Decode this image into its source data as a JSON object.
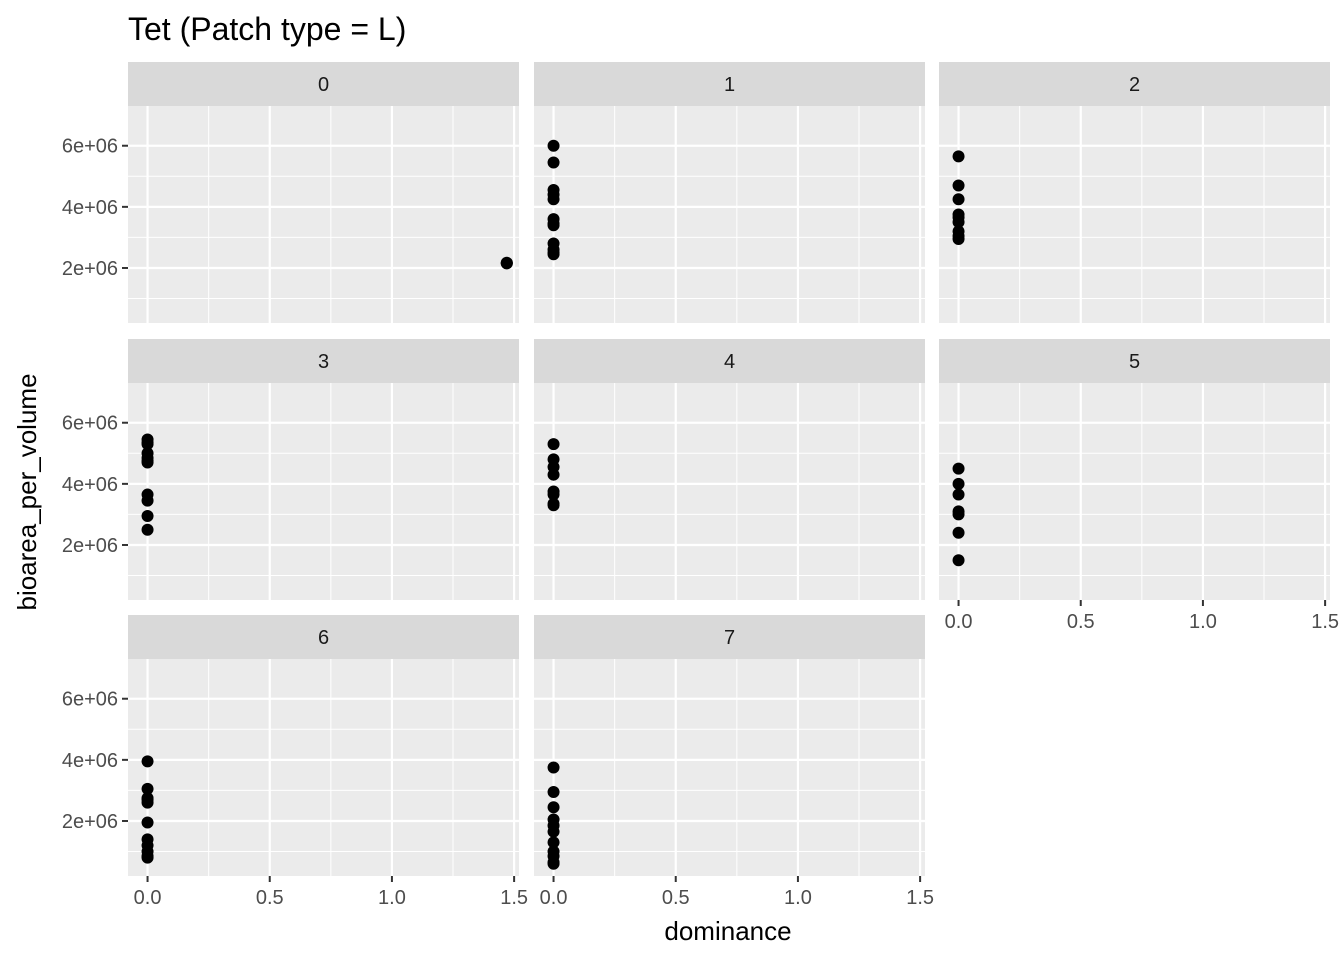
{
  "chart_data": {
    "type": "scatter",
    "title": "Tet (Patch type = L)",
    "xlabel": "dominance",
    "ylabel": "bioarea_per_volume",
    "xlim": [
      -0.08,
      1.52
    ],
    "ylim": [
      200000,
      7300000
    ],
    "x_ticks": [
      0.0,
      0.5,
      1.0,
      1.5
    ],
    "x_tick_labels": [
      "0.0",
      "0.5",
      "1.0",
      "1.5"
    ],
    "y_ticks": [
      2000000,
      4000000,
      6000000
    ],
    "y_tick_labels": [
      "2e+06",
      "4e+06",
      "6e+06"
    ],
    "grid": true,
    "facet_layout": {
      "ncol": 3,
      "nrow": 3
    },
    "panels": [
      {
        "label": "0",
        "x": [
          1.47,
          1.47,
          1.47
        ],
        "y": [
          2150000,
          2170000,
          2160000
        ]
      },
      {
        "label": "1",
        "x": [
          0,
          0,
          0,
          0,
          0,
          0,
          0,
          0,
          0,
          0,
          0,
          0
        ],
        "y": [
          6000000,
          5450000,
          4550000,
          4400000,
          4250000,
          3600000,
          3450000,
          3400000,
          2800000,
          2600000,
          2500000,
          2450000
        ]
      },
      {
        "label": "2",
        "x": [
          0,
          0,
          0,
          0,
          0,
          0,
          0,
          0,
          0
        ],
        "y": [
          5650000,
          4700000,
          4250000,
          3750000,
          3650000,
          3500000,
          3200000,
          3050000,
          2950000
        ]
      },
      {
        "label": "3",
        "x": [
          0,
          0,
          0,
          0,
          0,
          0,
          0,
          0,
          0,
          0,
          0
        ],
        "y": [
          5450000,
          5350000,
          5000000,
          4850000,
          4700000,
          3650000,
          3450000,
          2950000,
          2500000,
          4750000,
          5300000
        ]
      },
      {
        "label": "4",
        "x": [
          0,
          0,
          0,
          0,
          0,
          0,
          0,
          0
        ],
        "y": [
          5300000,
          4800000,
          4550000,
          4300000,
          3750000,
          3650000,
          3350000,
          3300000
        ]
      },
      {
        "label": "5",
        "x": [
          0,
          0,
          0,
          0,
          0,
          0,
          0
        ],
        "y": [
          4500000,
          4000000,
          3650000,
          3100000,
          3000000,
          2400000,
          1500000
        ]
      },
      {
        "label": "6",
        "x": [
          0,
          0,
          0,
          0,
          0,
          0,
          0,
          0,
          0,
          0,
          0
        ],
        "y": [
          3950000,
          3050000,
          2750000,
          2600000,
          1950000,
          1400000,
          1200000,
          1000000,
          850000,
          800000,
          2700000
        ]
      },
      {
        "label": "7",
        "x": [
          0,
          0,
          0,
          0,
          0,
          0,
          0,
          0,
          0,
          0,
          0
        ],
        "y": [
          3750000,
          2950000,
          2450000,
          2050000,
          1850000,
          1650000,
          1300000,
          1000000,
          850000,
          650000,
          600000
        ]
      }
    ]
  }
}
